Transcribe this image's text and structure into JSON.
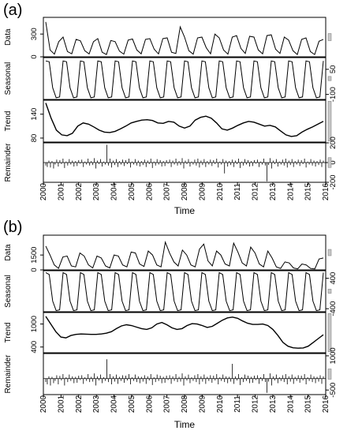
{
  "figure": {
    "panel_labels": [
      "(a)",
      "(b)"
    ]
  },
  "chart_data": [
    {
      "type": "line",
      "title": "(a)",
      "xlabel": "Time",
      "x_ticks": [
        "2000",
        "2001",
        "2002",
        "2003",
        "2004",
        "2005",
        "2006",
        "2007",
        "2008",
        "2009",
        "2010",
        "2011",
        "2012",
        "2013",
        "2014",
        "2015",
        "2016"
      ],
      "x_range": [
        2000,
        2016
      ],
      "components": [
        {
          "name": "Data",
          "ylim": [
            0,
            520
          ],
          "y_ticks": [
            0,
            300
          ],
          "tick_side": "left",
          "peaks": [
            260,
            210,
            240,
            200,
            235,
            240,
            250,
            395,
            260,
            300,
            250,
            280,
            260,
            290,
            220,
            250,
            230
          ],
          "troughs": [
            35,
            40,
            38,
            30,
            35,
            40,
            38,
            45,
            35,
            40,
            35,
            45,
            40,
            45,
            30,
            30
          ],
          "values": [
            460,
            90,
            35,
            200,
            260,
            70,
            40,
            230,
            210,
            80,
            38,
            200,
            240,
            60,
            30,
            215,
            200,
            75,
            35,
            220,
            235,
            90,
            40,
            230,
            240,
            100,
            38,
            240,
            250,
            60,
            45,
            395,
            260,
            80,
            35,
            250,
            260,
            120,
            40,
            300,
            250,
            90,
            35,
            260,
            280,
            110,
            45,
            270,
            260,
            90,
            40,
            280,
            290,
            100,
            45,
            260,
            220,
            80,
            30,
            230,
            250,
            70,
            30,
            205,
            230
          ]
        },
        {
          "name": "Seasonal",
          "ylim": [
            -130,
            120
          ],
          "y_ticks": [
            -100,
            50
          ],
          "tick_side": "right",
          "values": [
            100,
            95,
            -60,
            -120,
            -115,
            100,
            95,
            -60,
            -120,
            -115,
            100,
            95,
            -60,
            -120,
            -115,
            100,
            95,
            -60,
            -120,
            -115,
            100,
            95,
            -60,
            -120,
            -115,
            100,
            95,
            -60,
            -120,
            -115,
            100,
            95,
            -60,
            -120,
            -115,
            100,
            95,
            -60,
            -120,
            -115,
            100,
            95,
            -60,
            -120,
            -115,
            100,
            95,
            -60,
            -120,
            -115,
            100,
            95,
            -60,
            -120,
            -115,
            100,
            95,
            -60,
            -120,
            -115,
            100,
            95,
            -60,
            -120,
            -115,
            100,
            95,
            -60,
            -120,
            -115,
            100,
            95,
            -60,
            -120,
            -115,
            100,
            95,
            -60,
            -120,
            -115,
            100
          ]
        },
        {
          "name": "Trend",
          "ylim": [
            70,
            175
          ],
          "y_ticks": [
            80,
            140
          ],
          "tick_side": "left",
          "values": [
            168,
            130,
            100,
            88,
            86,
            92,
            110,
            118,
            115,
            108,
            100,
            95,
            94,
            97,
            103,
            110,
            118,
            122,
            125,
            126,
            124,
            118,
            117,
            122,
            120,
            110,
            105,
            110,
            125,
            132,
            135,
            130,
            118,
            103,
            100,
            105,
            112,
            118,
            122,
            120,
            115,
            110,
            112,
            108,
            98,
            88,
            84,
            86,
            95,
            102,
            108,
            115,
            122
          ]
        },
        {
          "name": "Remainder",
          "ylim": [
            -200,
            200
          ],
          "y_ticks": [
            -200,
            0,
            200
          ],
          "tick_side": "right",
          "values": [
            -30,
            -45,
            20,
            -50,
            15,
            -60,
            -20,
            30,
            -40,
            25,
            -15,
            40,
            -55,
            10,
            -30,
            35,
            -20,
            20,
            -40,
            15,
            -35,
            25,
            -10,
            30,
            -45,
            10,
            -20,
            40,
            -30,
            15,
            -25,
            45,
            -60,
            20,
            -15,
            35,
            -40,
            10,
            -20,
            180,
            -30,
            40,
            -50,
            20,
            -25,
            35,
            -45,
            15,
            -20,
            30,
            -35,
            25,
            -15,
            40,
            -50,
            10,
            -20,
            35,
            -30,
            20,
            -40,
            15,
            -25,
            30,
            -45,
            20,
            -15,
            40,
            -55,
            10,
            -30,
            35,
            -20,
            25,
            -40,
            15,
            -35,
            25,
            -10,
            30,
            -45,
            20,
            -20,
            40,
            -30,
            15,
            -25,
            45,
            -60,
            20,
            -15,
            35,
            -40,
            10,
            -20,
            30,
            -30,
            40,
            -50,
            20,
            -25,
            35,
            -45,
            15,
            -20,
            30,
            -35,
            25,
            -15,
            40,
            -50,
            10,
            -20,
            35,
            -110,
            20,
            -40,
            15,
            -25,
            30,
            -45,
            20,
            -15,
            40,
            -55,
            10,
            -30,
            35,
            -20,
            25,
            -40,
            15,
            -35,
            25,
            -10,
            30,
            -45,
            10,
            -20,
            40,
            -30,
            -190,
            -25,
            45,
            -60,
            20,
            -15,
            35,
            -40,
            10,
            -20,
            30,
            -30,
            40,
            -50,
            20,
            -25,
            35,
            -45,
            15,
            -20,
            30,
            -35,
            25,
            -15,
            40,
            -50,
            10,
            -20,
            35,
            -30,
            20,
            -40,
            15,
            -25,
            30,
            -45,
            20
          ]
        }
      ]
    },
    {
      "type": "line",
      "title": "(b)",
      "xlabel": "Time",
      "x_ticks": [
        "2000",
        "2001",
        "2002",
        "2003",
        "2004",
        "2005",
        "2006",
        "2007",
        "2008",
        "2009",
        "2010",
        "2011",
        "2012",
        "2013",
        "2014",
        "2015",
        "2016"
      ],
      "x_range": [
        2000,
        2016
      ],
      "components": [
        {
          "name": "Data",
          "ylim": [
            0,
            3500
          ],
          "y_ticks": [
            0,
            1500
          ],
          "tick_side": "left",
          "values": [
            2400,
            1500,
            500,
            150,
            1300,
            1400,
            400,
            300,
            1700,
            1400,
            500,
            200,
            1400,
            1200,
            400,
            200,
            1500,
            1400,
            500,
            300,
            1800,
            1700,
            600,
            350,
            1900,
            1500,
            500,
            300,
            2800,
            1700,
            800,
            400,
            2000,
            1500,
            500,
            300,
            2100,
            2600,
            900,
            400,
            1900,
            1500,
            600,
            400,
            2700,
            1800,
            700,
            400,
            2300,
            1700,
            600,
            300,
            1900,
            1200,
            300,
            150,
            800,
            700,
            200,
            100,
            600,
            500,
            150,
            100,
            1100,
            1200
          ]
        },
        {
          "name": "Seasonal",
          "ylim": [
            -480,
            600
          ],
          "y_ticks": [
            -400,
            400
          ],
          "tick_side": "right",
          "values": [
            550,
            500,
            -200,
            -450,
            -430,
            550,
            500,
            -200,
            -450,
            -430,
            550,
            500,
            -200,
            -450,
            -430,
            550,
            500,
            -200,
            -450,
            -430,
            550,
            500,
            -200,
            -450,
            -430,
            550,
            500,
            -200,
            -450,
            -430,
            550,
            500,
            -200,
            -450,
            -430,
            550,
            500,
            -200,
            -450,
            -430,
            550,
            500,
            -200,
            -450,
            -430,
            550,
            500,
            -200,
            -450,
            -430,
            550,
            500,
            -200,
            -450,
            -430,
            550,
            500,
            -200,
            -450,
            -430,
            550,
            500,
            -200,
            -450,
            -430,
            550,
            500,
            -200,
            -450,
            -430,
            550,
            500,
            -200,
            -450,
            -430,
            550,
            500,
            -200,
            -450,
            -430,
            550
          ]
        },
        {
          "name": "Trend",
          "ylim": [
            250,
            1300
          ],
          "y_ticks": [
            400,
            1000
          ],
          "tick_side": "left",
          "values": [
            1200,
            1000,
            800,
            660,
            640,
            700,
            730,
            740,
            735,
            730,
            730,
            740,
            760,
            800,
            880,
            950,
            980,
            960,
            920,
            880,
            860,
            900,
            1000,
            1040,
            980,
            900,
            860,
            880,
            960,
            1010,
            1000,
            960,
            910,
            940,
            1020,
            1100,
            1160,
            1180,
            1150,
            1080,
            1020,
            990,
            990,
            1000,
            960,
            860,
            700,
            520,
            420,
            380,
            370,
            375,
            420,
            520,
            620,
            720
          ]
        },
        {
          "name": "Remainder",
          "ylim": [
            -700,
            1100
          ],
          "y_ticks": [
            -500,
            1000
          ],
          "tick_side": "right",
          "values": [
            -150,
            -250,
            100,
            -300,
            80,
            -200,
            -100,
            150,
            -250,
            120,
            -80,
            200,
            -300,
            60,
            -150,
            180,
            -100,
            100,
            -200,
            80,
            -180,
            130,
            -60,
            150,
            -230,
            60,
            -100,
            200,
            -150,
            80,
            -130,
            230,
            -300,
            100,
            -80,
            180,
            -200,
            60,
            -100,
            850,
            -150,
            200,
            -250,
            100,
            -130,
            180,
            -230,
            80,
            -100,
            150,
            -180,
            130,
            -80,
            200,
            -250,
            60,
            -100,
            180,
            -150,
            100,
            -200,
            80,
            -130,
            150,
            -230,
            100,
            -80,
            200,
            -280,
            60,
            -150,
            180,
            -100,
            130,
            -200,
            80,
            -180,
            130,
            -60,
            150,
            -230,
            100,
            -100,
            200,
            -150,
            80,
            -130,
            230,
            -300,
            100,
            -80,
            180,
            -200,
            60,
            -100,
            150,
            -150,
            200,
            -250,
            100,
            -130,
            180,
            -230,
            80,
            -100,
            150,
            -180,
            130,
            -80,
            200,
            -250,
            60,
            -100,
            180,
            -150,
            100,
            -200,
            80,
            -130,
            650,
            -230,
            100,
            -80,
            200,
            -280,
            60,
            -150,
            180,
            -100,
            130,
            -200,
            80,
            -180,
            130,
            -60,
            150,
            -230,
            60,
            -100,
            200,
            -150,
            -620,
            -130,
            230,
            -300,
            100,
            -80,
            180,
            -200,
            60,
            -100,
            150,
            -150,
            200,
            -250,
            100,
            -130,
            180,
            -230,
            80,
            -100,
            150,
            -180,
            130,
            -80,
            200,
            -250,
            60,
            -100,
            180,
            -150,
            100,
            -200,
            80,
            -130,
            150,
            -230,
            100
          ]
        }
      ]
    }
  ]
}
